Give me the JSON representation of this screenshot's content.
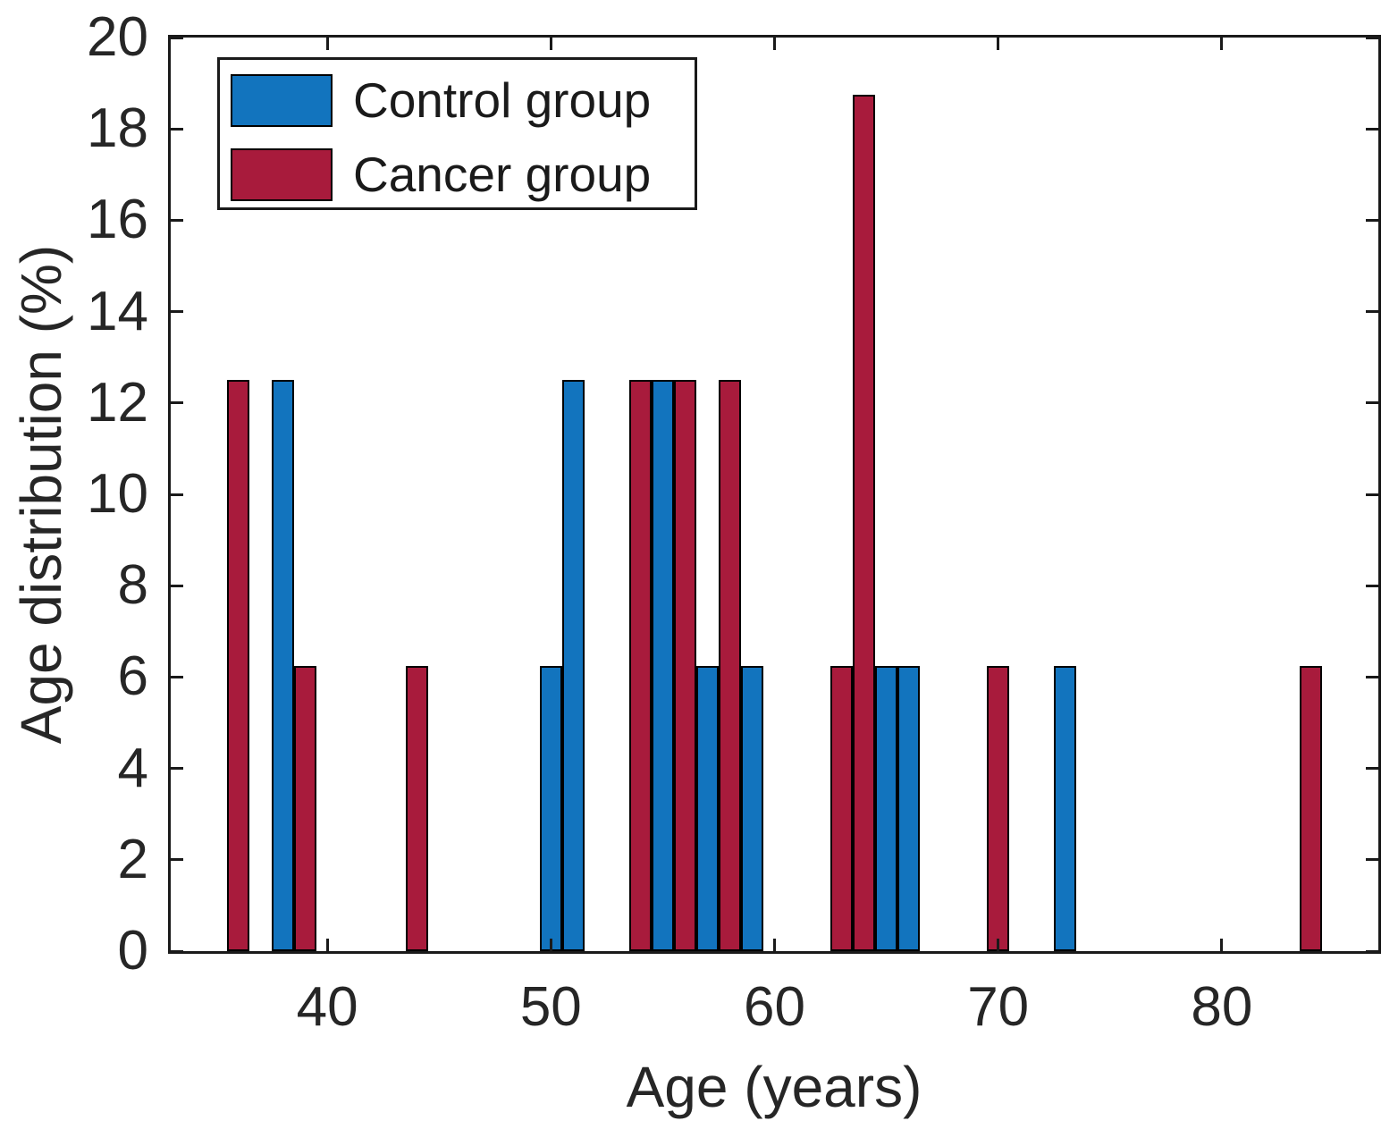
{
  "figure": {
    "background": "#ffffff",
    "axis_color": "#1a1a1a",
    "text_color": "#262626",
    "bar_edge_color": "#000000"
  },
  "chart_data": {
    "type": "bar",
    "title": "",
    "xlabel": "Age (years)",
    "ylabel": "Age distribution (%)",
    "xlim": [
      33,
      87
    ],
    "ylim": [
      0,
      20
    ],
    "x_ticks": [
      40,
      50,
      60,
      70,
      80
    ],
    "y_ticks": [
      0,
      2,
      4,
      6,
      8,
      10,
      12,
      14,
      16,
      18,
      20
    ],
    "bin_width": 1,
    "grid": false,
    "legend_position": "top-left",
    "series": [
      {
        "name": "Control group",
        "color": "#1274BE",
        "x": [
          38,
          50,
          51,
          55,
          57,
          59,
          65,
          66,
          73
        ],
        "values": [
          12.5,
          6.25,
          12.5,
          12.5,
          6.25,
          6.25,
          6.25,
          6.25,
          6.25
        ]
      },
      {
        "name": "Cancer group",
        "color": "#A81B3C",
        "x": [
          36,
          39,
          44,
          54,
          56,
          58,
          63,
          64,
          70,
          84
        ],
        "values": [
          12.5,
          6.25,
          6.25,
          12.5,
          12.5,
          12.5,
          6.25,
          18.75,
          6.25,
          6.25
        ]
      }
    ]
  }
}
